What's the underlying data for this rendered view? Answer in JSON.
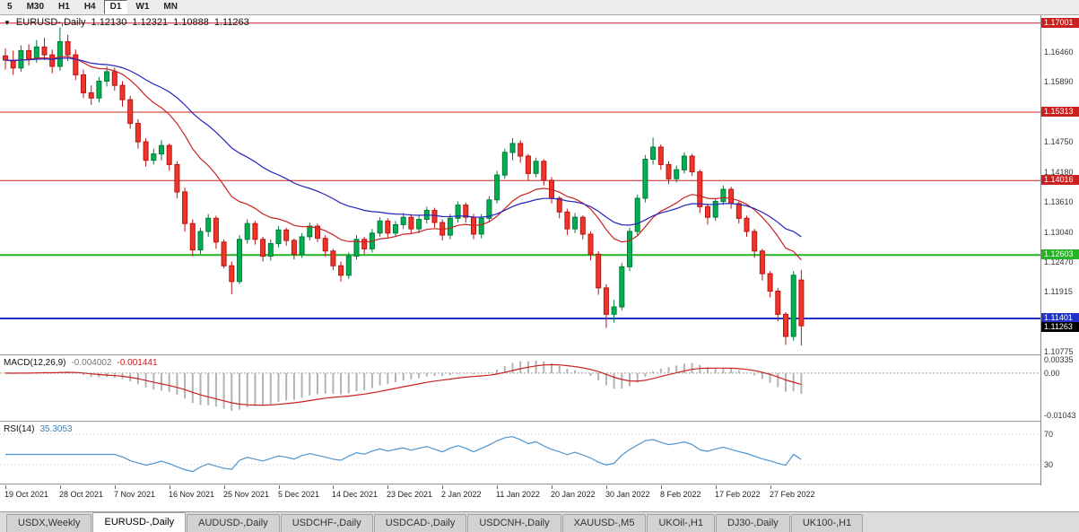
{
  "toolbar": {
    "timeframes": [
      "5",
      "M30",
      "H1",
      "H4",
      "D1",
      "W1",
      "MN"
    ],
    "active": "D1"
  },
  "legend": {
    "expander": "▼",
    "symbol_period": "EURUSD-,Daily",
    "open": "1.12130",
    "high": "1.12321",
    "low": "1.10888",
    "close": "1.11263"
  },
  "macd_label": {
    "name": "MACD(12,26,9)",
    "value_main": "-0.004002",
    "value_signal": "-0.001441"
  },
  "rsi_label": {
    "name": "RSI(14)",
    "value": "35.3053"
  },
  "tabs": [
    "USDX,Weekly",
    "EURUSD-,Daily",
    "AUDUSD-,Daily",
    "USDCHF-,Daily",
    "USDCAD-,Daily",
    "USDCNH-,Daily",
    "XAUUSD-,M5",
    "UKOil-,H1",
    "DJ30-,Daily",
    "UK100-,H1"
  ],
  "active_tab": "EURUSD-,Daily",
  "colors": {
    "candle_up": "#00b050",
    "candle_up_stroke": "#007a3a",
    "candle_down": "#ef3528",
    "candle_down_stroke": "#b81414",
    "macd_hist": "#b3b3b3",
    "macd_signal": "#c92222",
    "rsi": "#4f94cd",
    "level_red": "#cc2020",
    "level_green": "#22b422",
    "level_blue": "#2233cc",
    "current_black": "#000000"
  },
  "chart_data": {
    "type": "candlestick",
    "symbol": "EURUSD-",
    "timeframe": "Daily",
    "y_range": [
      1.1072,
      1.1715
    ],
    "x_label_every": 7,
    "x_labels": [
      "19 Oct 2021",
      "28 Oct 2021",
      "7 Nov 2021",
      "16 Nov 2021",
      "25 Nov 2021",
      "5 Dec 2021",
      "14 Dec 2021",
      "23 Dec 2021",
      "2 Jan 2022",
      "11 Jan 2022",
      "20 Jan 2022",
      "30 Jan 2022",
      "8 Feb 2022",
      "17 Feb 2022",
      "27 Feb 2022"
    ],
    "ticks": [
      {
        "v": 1.1646,
        "t": "1.16460"
      },
      {
        "v": 1.1589,
        "t": "1.15890"
      },
      {
        "v": 1.1475,
        "t": "1.14750"
      },
      {
        "v": 1.1418,
        "t": "1.14180"
      },
      {
        "v": 1.1361,
        "t": "1.13610"
      },
      {
        "v": 1.1304,
        "t": "1.13040"
      },
      {
        "v": 1.1247,
        "t": "1.12470"
      },
      {
        "v": 1.11915,
        "t": "1.11915"
      },
      {
        "v": 1.10775,
        "t": "1.10775"
      }
    ],
    "h_lines": [
      {
        "price": 1.17001,
        "label": "1.17001",
        "color": "#cc2020",
        "width": 1
      },
      {
        "price": 1.15313,
        "label": "1.15313",
        "color": "#cc2020",
        "width": 1
      },
      {
        "price": 1.14016,
        "label": "1.14016",
        "color": "#cc2020",
        "width": 1
      },
      {
        "price": 1.12603,
        "label": "1.12603",
        "color": "#22b422",
        "width": 2
      },
      {
        "price": 1.11401,
        "label": "1.11401",
        "color": "#2233cc",
        "width": 2
      }
    ],
    "current_price": {
      "price": 1.11263,
      "label": "1.11263",
      "bg": "#000000"
    },
    "ma": [
      {
        "period": 16,
        "color": "#c92222"
      },
      {
        "period": 34,
        "color": "#2424bd"
      }
    ],
    "macd": {
      "fast": 12,
      "slow": 26,
      "signal": 9,
      "value_main": -0.004002,
      "value_signal": -0.001441,
      "range": [
        -0.0118,
        0.0042
      ],
      "axis": [
        {
          "v": 0.00335,
          "t": "0.00335"
        },
        {
          "v": 0,
          "t": "0.00"
        },
        {
          "v": -0.01043,
          "t": "-0.01043"
        }
      ]
    },
    "rsi": {
      "period": 14,
      "value": 35.3053,
      "scale": [
        5,
        85
      ],
      "levels": [
        30,
        70
      ],
      "axis": [
        {
          "v": 70,
          "t": "70"
        },
        {
          "v": 30,
          "t": "30"
        }
      ]
    },
    "ohlc": [
      [
        1.1638,
        1.1652,
        1.1612,
        1.163
      ],
      [
        1.163,
        1.1648,
        1.1602,
        1.1615
      ],
      [
        1.1615,
        1.1658,
        1.1608,
        1.1648
      ],
      [
        1.1648,
        1.166,
        1.162,
        1.1632
      ],
      [
        1.1632,
        1.1668,
        1.1625,
        1.1655
      ],
      [
        1.1655,
        1.1672,
        1.163,
        1.164
      ],
      [
        1.164,
        1.165,
        1.1605,
        1.1618
      ],
      [
        1.1618,
        1.1692,
        1.161,
        1.1665
      ],
      [
        1.1665,
        1.1678,
        1.1628,
        1.164
      ],
      [
        1.164,
        1.165,
        1.1592,
        1.1602
      ],
      [
        1.1602,
        1.1612,
        1.1558,
        1.1568
      ],
      [
        1.1568,
        1.1582,
        1.1545,
        1.1558
      ],
      [
        1.1558,
        1.1598,
        1.155,
        1.159
      ],
      [
        1.159,
        1.1618,
        1.158,
        1.1608
      ],
      [
        1.1608,
        1.1616,
        1.1572,
        1.1582
      ],
      [
        1.1582,
        1.159,
        1.1542,
        1.1555
      ],
      [
        1.1555,
        1.1562,
        1.15,
        1.151
      ],
      [
        1.151,
        1.1518,
        1.1462,
        1.1475
      ],
      [
        1.1475,
        1.1482,
        1.1428,
        1.144
      ],
      [
        1.144,
        1.1462,
        1.1432,
        1.1452
      ],
      [
        1.1452,
        1.1478,
        1.144,
        1.1468
      ],
      [
        1.1468,
        1.1472,
        1.142,
        1.1432
      ],
      [
        1.1432,
        1.1438,
        1.1368,
        1.138
      ],
      [
        1.138,
        1.1388,
        1.1305,
        1.132
      ],
      [
        1.132,
        1.1328,
        1.1258,
        1.127
      ],
      [
        1.127,
        1.1312,
        1.1262,
        1.1305
      ],
      [
        1.1305,
        1.1338,
        1.1295,
        1.133
      ],
      [
        1.133,
        1.1335,
        1.1272,
        1.1285
      ],
      [
        1.1285,
        1.129,
        1.1235,
        1.124
      ],
      [
        1.124,
        1.1248,
        1.1186,
        1.121
      ],
      [
        1.121,
        1.1298,
        1.1205,
        1.129
      ],
      [
        1.129,
        1.1328,
        1.1282,
        1.132
      ],
      [
        1.132,
        1.1325,
        1.128,
        1.129
      ],
      [
        1.129,
        1.1295,
        1.1248,
        1.1258
      ],
      [
        1.1258,
        1.129,
        1.125,
        1.1282
      ],
      [
        1.1282,
        1.1315,
        1.1275,
        1.1308
      ],
      [
        1.1308,
        1.1312,
        1.1278,
        1.1288
      ],
      [
        1.1288,
        1.1292,
        1.1252,
        1.1262
      ],
      [
        1.1262,
        1.1302,
        1.1255,
        1.1295
      ],
      [
        1.1295,
        1.1322,
        1.1288,
        1.1315
      ],
      [
        1.1315,
        1.132,
        1.1285,
        1.1292
      ],
      [
        1.1292,
        1.1298,
        1.1258,
        1.1268
      ],
      [
        1.1268,
        1.1272,
        1.1232,
        1.124
      ],
      [
        1.124,
        1.1248,
        1.121,
        1.1222
      ],
      [
        1.1222,
        1.1265,
        1.1215,
        1.1258
      ],
      [
        1.1258,
        1.1298,
        1.1252,
        1.129
      ],
      [
        1.129,
        1.1295,
        1.1262,
        1.1272
      ],
      [
        1.1272,
        1.131,
        1.1265,
        1.1302
      ],
      [
        1.1302,
        1.1332,
        1.1295,
        1.1325
      ],
      [
        1.1325,
        1.133,
        1.1292,
        1.1302
      ],
      [
        1.1302,
        1.1325,
        1.1295,
        1.1318
      ],
      [
        1.1318,
        1.134,
        1.131,
        1.1332
      ],
      [
        1.1332,
        1.1338,
        1.13,
        1.131
      ],
      [
        1.131,
        1.1335,
        1.1302,
        1.1328
      ],
      [
        1.1328,
        1.1352,
        1.132,
        1.1345
      ],
      [
        1.1345,
        1.135,
        1.1312,
        1.1322
      ],
      [
        1.1322,
        1.1328,
        1.1288,
        1.1298
      ],
      [
        1.1298,
        1.1338,
        1.129,
        1.133
      ],
      [
        1.133,
        1.1362,
        1.1322,
        1.1355
      ],
      [
        1.1355,
        1.136,
        1.1322,
        1.1332
      ],
      [
        1.1332,
        1.1338,
        1.129,
        1.13
      ],
      [
        1.13,
        1.1338,
        1.1292,
        1.133
      ],
      [
        1.133,
        1.1372,
        1.1322,
        1.1365
      ],
      [
        1.1365,
        1.142,
        1.1358,
        1.1412
      ],
      [
        1.1412,
        1.1462,
        1.1405,
        1.1455
      ],
      [
        1.1455,
        1.1482,
        1.144,
        1.1472
      ],
      [
        1.1472,
        1.1478,
        1.1435,
        1.1448
      ],
      [
        1.1448,
        1.1452,
        1.1402,
        1.1415
      ],
      [
        1.1415,
        1.1445,
        1.1408,
        1.1438
      ],
      [
        1.1438,
        1.1442,
        1.1392,
        1.1402
      ],
      [
        1.1402,
        1.1408,
        1.1358,
        1.1368
      ],
      [
        1.1368,
        1.1372,
        1.133,
        1.1342
      ],
      [
        1.1342,
        1.1348,
        1.1298,
        1.131
      ],
      [
        1.131,
        1.134,
        1.1302,
        1.1332
      ],
      [
        1.1332,
        1.1336,
        1.129,
        1.13
      ],
      [
        1.13,
        1.1305,
        1.125,
        1.1262
      ],
      [
        1.1262,
        1.1268,
        1.1185,
        1.1198
      ],
      [
        1.1198,
        1.1205,
        1.1122,
        1.1148
      ],
      [
        1.1148,
        1.1175,
        1.1132,
        1.1162
      ],
      [
        1.1162,
        1.1245,
        1.1155,
        1.1238
      ],
      [
        1.1238,
        1.1312,
        1.123,
        1.1305
      ],
      [
        1.1305,
        1.1375,
        1.1298,
        1.1368
      ],
      [
        1.1368,
        1.145,
        1.136,
        1.1442
      ],
      [
        1.1442,
        1.1483,
        1.1432,
        1.1465
      ],
      [
        1.1465,
        1.147,
        1.1422,
        1.1432
      ],
      [
        1.1432,
        1.1438,
        1.1395,
        1.1405
      ],
      [
        1.1405,
        1.143,
        1.1398,
        1.1422
      ],
      [
        1.1422,
        1.1455,
        1.1415,
        1.1448
      ],
      [
        1.1448,
        1.1452,
        1.141,
        1.1418
      ],
      [
        1.1418,
        1.1422,
        1.134,
        1.1352
      ],
      [
        1.1352,
        1.1358,
        1.1318,
        1.1332
      ],
      [
        1.1332,
        1.1368,
        1.1325,
        1.1362
      ],
      [
        1.1362,
        1.1392,
        1.1355,
        1.1385
      ],
      [
        1.1385,
        1.139,
        1.1348,
        1.1358
      ],
      [
        1.1358,
        1.1362,
        1.132,
        1.133
      ],
      [
        1.133,
        1.1335,
        1.1295,
        1.1305
      ],
      [
        1.1305,
        1.131,
        1.1255,
        1.1268
      ],
      [
        1.1268,
        1.1272,
        1.1212,
        1.1225
      ],
      [
        1.1225,
        1.123,
        1.118,
        1.1192
      ],
      [
        1.1192,
        1.1198,
        1.1135,
        1.1148
      ],
      [
        1.1148,
        1.1152,
        1.109,
        1.1106
      ],
      [
        1.1106,
        1.123,
        1.1098,
        1.1222
      ],
      [
        1.1213,
        1.12321,
        1.10888,
        1.11263
      ]
    ]
  }
}
